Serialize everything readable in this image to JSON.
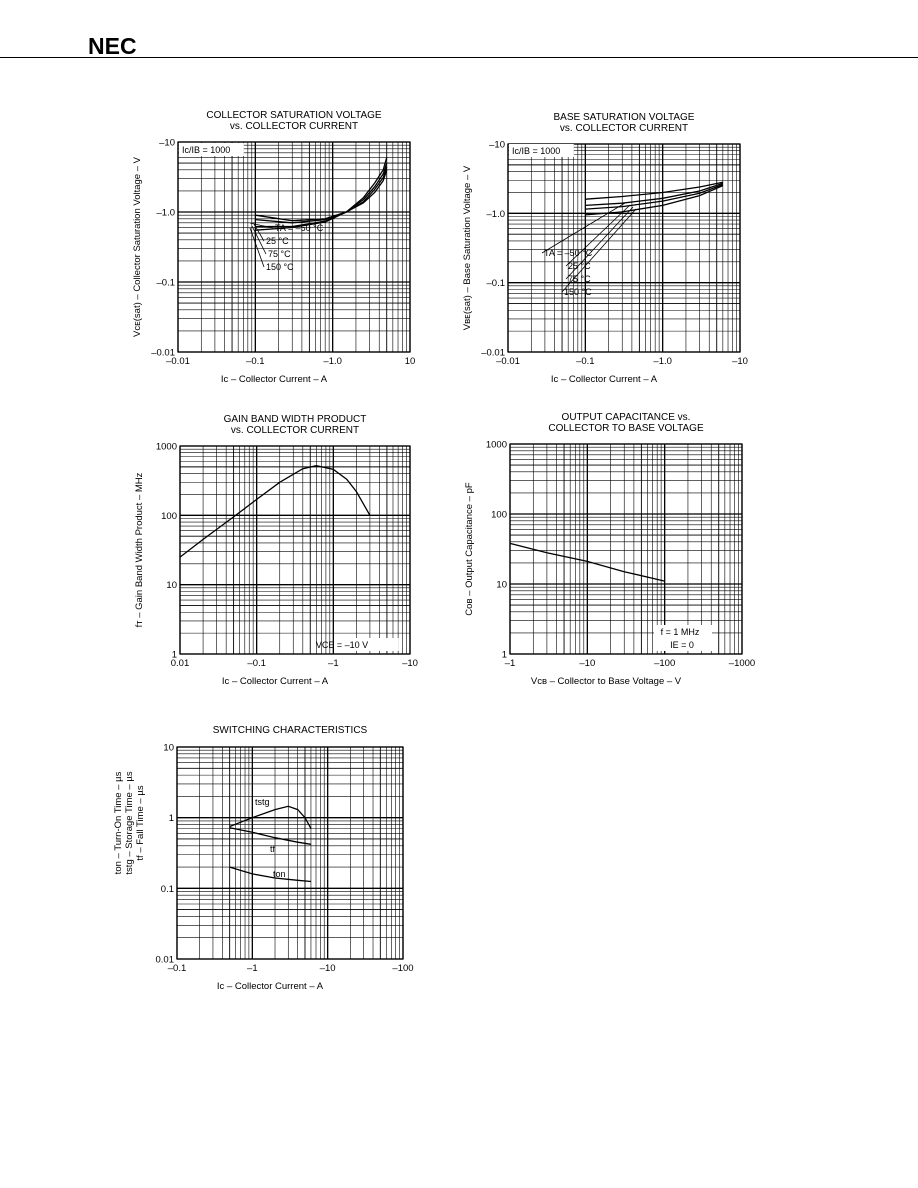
{
  "header": {
    "logo": "NEC"
  },
  "chart_data": [
    {
      "id": "c1",
      "type": "line",
      "title_lines": [
        "COLLECTOR SATURATION VOLTAGE",
        "vs. COLLECTOR CURRENT"
      ],
      "xlabel": "Iᴄ – Collector Current – A",
      "ylabel": "Vᴄᴇ(sat) – Collector Saturation Voltage – V",
      "x_scale": "log",
      "y_scale": "log",
      "xlim": [
        0.01,
        10
      ],
      "ylim": [
        0.01,
        10
      ],
      "xticks": [
        {
          "v": 0.01,
          "t": "–0.01"
        },
        {
          "v": 0.1,
          "t": "–0.1"
        },
        {
          "v": 1,
          "t": "–1.0"
        },
        {
          "v": 10,
          "t": "10"
        }
      ],
      "yticks": [
        {
          "v": 0.01,
          "t": "–0.01"
        },
        {
          "v": 0.1,
          "t": "–0.1"
        },
        {
          "v": 1,
          "t": "–1.0"
        },
        {
          "v": 10,
          "t": "–10"
        }
      ],
      "condition": "Ic/IB = 1000",
      "series": [
        {
          "name": "TA = –50 °C",
          "x": [
            0.1,
            0.3,
            0.8,
            1.5,
            2.5,
            3.5,
            4.5,
            5.0
          ],
          "y": [
            0.9,
            0.75,
            0.8,
            1.0,
            1.6,
            2.6,
            4.0,
            6.0
          ]
        },
        {
          "name": "25 °C",
          "x": [
            0.1,
            0.3,
            0.8,
            1.5,
            2.5,
            3.5,
            4.5,
            5.0
          ],
          "y": [
            0.78,
            0.7,
            0.78,
            1.0,
            1.5,
            2.3,
            3.5,
            5.0
          ]
        },
        {
          "name": "75 °C",
          "x": [
            0.1,
            0.3,
            0.8,
            1.5,
            2.5,
            3.5,
            4.5,
            5.0
          ],
          "y": [
            0.62,
            0.62,
            0.74,
            1.0,
            1.4,
            2.1,
            3.1,
            4.4
          ]
        },
        {
          "name": "150 °C",
          "x": [
            0.1,
            0.3,
            0.8,
            1.5,
            2.5,
            3.5,
            4.5,
            5.0
          ],
          "y": [
            0.55,
            0.6,
            0.72,
            1.0,
            1.35,
            1.9,
            2.8,
            4.0
          ]
        }
      ]
    },
    {
      "id": "c2",
      "type": "line",
      "title_lines": [
        "BASE SATURATION VOLTAGE",
        "vs. COLLECTOR CURRENT"
      ],
      "xlabel": "Iᴄ – Collector Current – A",
      "ylabel": "Vʙᴇ(sat) – Base Saturation Voltage – V",
      "x_scale": "log",
      "y_scale": "log",
      "xlim": [
        0.01,
        10
      ],
      "ylim": [
        0.01,
        10
      ],
      "xticks": [
        {
          "v": 0.01,
          "t": "–0.01"
        },
        {
          "v": 0.1,
          "t": "–0.1"
        },
        {
          "v": 1,
          "t": "–1.0"
        },
        {
          "v": 10,
          "t": "–10"
        }
      ],
      "yticks": [
        {
          "v": 0.01,
          "t": "–0.01"
        },
        {
          "v": 0.1,
          "t": "–0.1"
        },
        {
          "v": 1,
          "t": "–1.0"
        },
        {
          "v": 10,
          "t": "–10"
        }
      ],
      "condition": "Ic/IB = 1000",
      "series": [
        {
          "name": "TA = –50 °C",
          "x": [
            0.1,
            0.3,
            1.0,
            3.0,
            6.0
          ],
          "y": [
            1.6,
            1.75,
            2.0,
            2.4,
            2.8
          ]
        },
        {
          "name": "25 °C",
          "x": [
            0.1,
            0.3,
            1.0,
            3.0,
            6.0
          ],
          "y": [
            1.3,
            1.4,
            1.65,
            2.1,
            2.7
          ]
        },
        {
          "name": "75 °C",
          "x": [
            0.1,
            0.3,
            1.0,
            3.0,
            6.0
          ],
          "y": [
            1.15,
            1.25,
            1.5,
            1.95,
            2.6
          ]
        },
        {
          "name": "150 °C",
          "x": [
            0.1,
            0.3,
            1.0,
            3.0,
            6.0
          ],
          "y": [
            0.95,
            1.05,
            1.3,
            1.8,
            2.5
          ]
        }
      ]
    },
    {
      "id": "c3",
      "type": "line",
      "title_lines": [
        "GAIN BAND WIDTH PRODUCT",
        "vs. COLLECTOR CURRENT"
      ],
      "xlabel": "Iᴄ – Collector Current – A",
      "ylabel": "fᴛ – Gain Band Width Product – MHz",
      "x_scale": "log",
      "y_scale": "log",
      "xlim": [
        0.01,
        10
      ],
      "ylim": [
        1,
        1000
      ],
      "xticks": [
        {
          "v": 0.01,
          "t": "0.01"
        },
        {
          "v": 0.1,
          "t": "–0.1"
        },
        {
          "v": 1,
          "t": "–1"
        },
        {
          "v": 10,
          "t": "–10"
        }
      ],
      "yticks": [
        {
          "v": 1,
          "t": "1"
        },
        {
          "v": 10,
          "t": "10"
        },
        {
          "v": 100,
          "t": "100"
        },
        {
          "v": 1000,
          "t": "1000"
        }
      ],
      "condition": "VCE = –10 V",
      "series": [
        {
          "name": "",
          "x": [
            0.01,
            0.02,
            0.05,
            0.1,
            0.2,
            0.4,
            0.6,
            1.0,
            1.5,
            2.0,
            3.0
          ],
          "y": [
            25,
            45,
            95,
            170,
            300,
            470,
            520,
            460,
            330,
            220,
            100
          ]
        }
      ]
    },
    {
      "id": "c4",
      "type": "line",
      "title_lines": [
        "OUTPUT CAPACITANCE vs.",
        "COLLECTOR TO BASE VOLTAGE"
      ],
      "xlabel": "Vᴄʙ – Collector to Base Voltage – V",
      "ylabel": "Cᴏʙ – Output Capacitance – pF",
      "x_scale": "log",
      "y_scale": "log",
      "xlim": [
        1,
        1000
      ],
      "ylim": [
        1,
        1000
      ],
      "xticks": [
        {
          "v": 1,
          "t": "–1"
        },
        {
          "v": 10,
          "t": "–10"
        },
        {
          "v": 100,
          "t": "–100"
        },
        {
          "v": 1000,
          "t": "–1000"
        }
      ],
      "yticks": [
        {
          "v": 1,
          "t": "1"
        },
        {
          "v": 10,
          "t": "10"
        },
        {
          "v": 100,
          "t": "100"
        },
        {
          "v": 1000,
          "t": "1000"
        }
      ],
      "condition_lines": [
        "f = 1 MHz",
        "IE = 0"
      ],
      "series": [
        {
          "name": "",
          "x": [
            1,
            3,
            10,
            30,
            100
          ],
          "y": [
            38,
            28,
            21,
            15,
            11
          ]
        }
      ]
    },
    {
      "id": "c5",
      "type": "line",
      "title_lines": [
        "SWITCHING CHARACTERISTICS"
      ],
      "xlabel": "Iᴄ – Collector Current – A",
      "ylabel_lines": [
        "ton – Turn-On Time – µs",
        "tstg – Storage Time – µs",
        "tf – Fall Time – µs"
      ],
      "x_scale": "log",
      "y_scale": "log",
      "xlim": [
        0.1,
        100
      ],
      "ylim": [
        0.01,
        10
      ],
      "xticks": [
        {
          "v": 0.1,
          "t": "–0.1"
        },
        {
          "v": 1,
          "t": "–1"
        },
        {
          "v": 10,
          "t": "–10"
        },
        {
          "v": 100,
          "t": "–100"
        }
      ],
      "yticks": [
        {
          "v": 0.01,
          "t": "0.01"
        },
        {
          "v": 0.1,
          "t": "0.1"
        },
        {
          "v": 1,
          "t": "1"
        },
        {
          "v": 10,
          "t": "10"
        }
      ],
      "series": [
        {
          "name": "tstg",
          "x": [
            0.5,
            1,
            2,
            3,
            4,
            5,
            6
          ],
          "y": [
            0.75,
            1.0,
            1.3,
            1.45,
            1.3,
            1.0,
            0.7
          ]
        },
        {
          "name": "tf",
          "x": [
            0.5,
            1,
            2,
            4,
            6
          ],
          "y": [
            0.72,
            0.62,
            0.52,
            0.45,
            0.42
          ]
        },
        {
          "name": "ton",
          "x": [
            0.5,
            1,
            2,
            4,
            6
          ],
          "y": [
            0.2,
            0.16,
            0.14,
            0.13,
            0.125
          ]
        }
      ]
    }
  ]
}
